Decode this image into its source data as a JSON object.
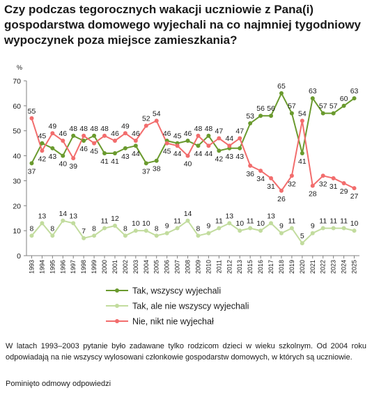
{
  "title": "Czy podczas tegorocznych wakacji uczniowie z Pana(i) gospodarstwa domowego wyjechali na co najmniej tygodniowy wypoczynek poza miejsce zamieszkania?",
  "notes": {
    "note1": "W latach 1993–2003 pytanie było zadawane tylko rodzicom dzieci w wieku szkolnym. Od 2004 roku odpowiadają na nie wszyscy wylosowani członkowie gospodarstw domowych, w których są uczniowie.",
    "note2": "Pominięto odmowy odpowiedzi"
  },
  "chart_data": {
    "type": "line",
    "ylabel": "%",
    "ylim": [
      0,
      70
    ],
    "yticks": [
      0,
      10,
      20,
      30,
      40,
      50,
      60,
      70
    ],
    "grid": false,
    "legend_position": "bottom",
    "x": [
      "1993",
      "1994",
      "1995",
      "1996",
      "1997",
      "1998",
      "1999",
      "2000",
      "2001",
      "2002",
      "2003",
      "2004",
      "2005",
      "2006",
      "2007",
      "2008",
      "2009",
      "2010",
      "2011",
      "2012",
      "2013",
      "2015",
      "2016",
      "2017",
      "2018",
      "2019",
      "2020",
      "2021",
      "2022",
      "2023",
      "2024",
      "2025"
    ],
    "series": [
      {
        "name": "Tak, wszyscy wyjechali",
        "color": "#6a9a2e",
        "values": [
          37,
          45,
          43,
          40,
          48,
          46,
          48,
          41,
          41,
          43,
          44,
          37,
          38,
          46,
          45,
          46,
          44,
          48,
          42,
          43,
          43,
          53,
          56,
          56,
          65,
          57,
          41,
          63,
          57,
          57,
          60,
          63
        ]
      },
      {
        "name": "Tak, ale nie wszyscy wyjechali",
        "color": "#c2dc9e",
        "values": [
          8,
          13,
          8,
          14,
          13,
          7,
          8,
          11,
          12,
          8,
          10,
          10,
          8,
          9,
          11,
          14,
          8,
          9,
          11,
          13,
          10,
          11,
          10,
          13,
          9,
          11,
          5,
          9,
          11,
          11,
          11,
          10
        ]
      },
      {
        "name": "Nie, nikt nie wyjechał",
        "color": "#f26d6d",
        "values": [
          55,
          42,
          49,
          46,
          39,
          48,
          45,
          48,
          46,
          49,
          46,
          52,
          54,
          45,
          44,
          40,
          48,
          44,
          47,
          44,
          47,
          36,
          34,
          31,
          26,
          32,
          54,
          28,
          32,
          31,
          29,
          27
        ]
      }
    ]
  }
}
